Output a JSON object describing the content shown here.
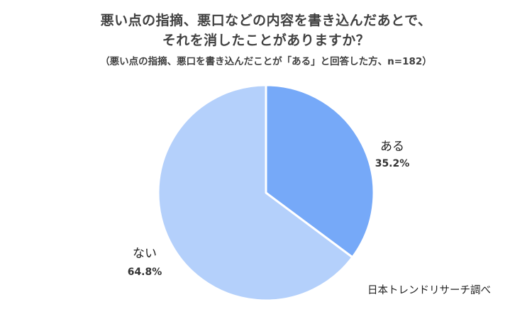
{
  "title_line1": "悪い点の指摘、悪口などの内容を書き込んだあとで、",
  "title_line2": "それを消したことがありますか？",
  "subtitle": "（悪い点の指摘、悪口を書き込んだことが「ある」と回答した方、n=182）",
  "source": "日本トレンドリサーチ調べ",
  "chart_data": {
    "type": "pie",
    "slices": [
      {
        "label": "ある",
        "value": 35.2,
        "display": "35.2%",
        "color": "#76A9F8"
      },
      {
        "label": "ない",
        "value": 64.8,
        "display": "64.8%",
        "color": "#B4D0FB"
      }
    ],
    "start": "12 o'clock",
    "direction": "clockwise"
  }
}
